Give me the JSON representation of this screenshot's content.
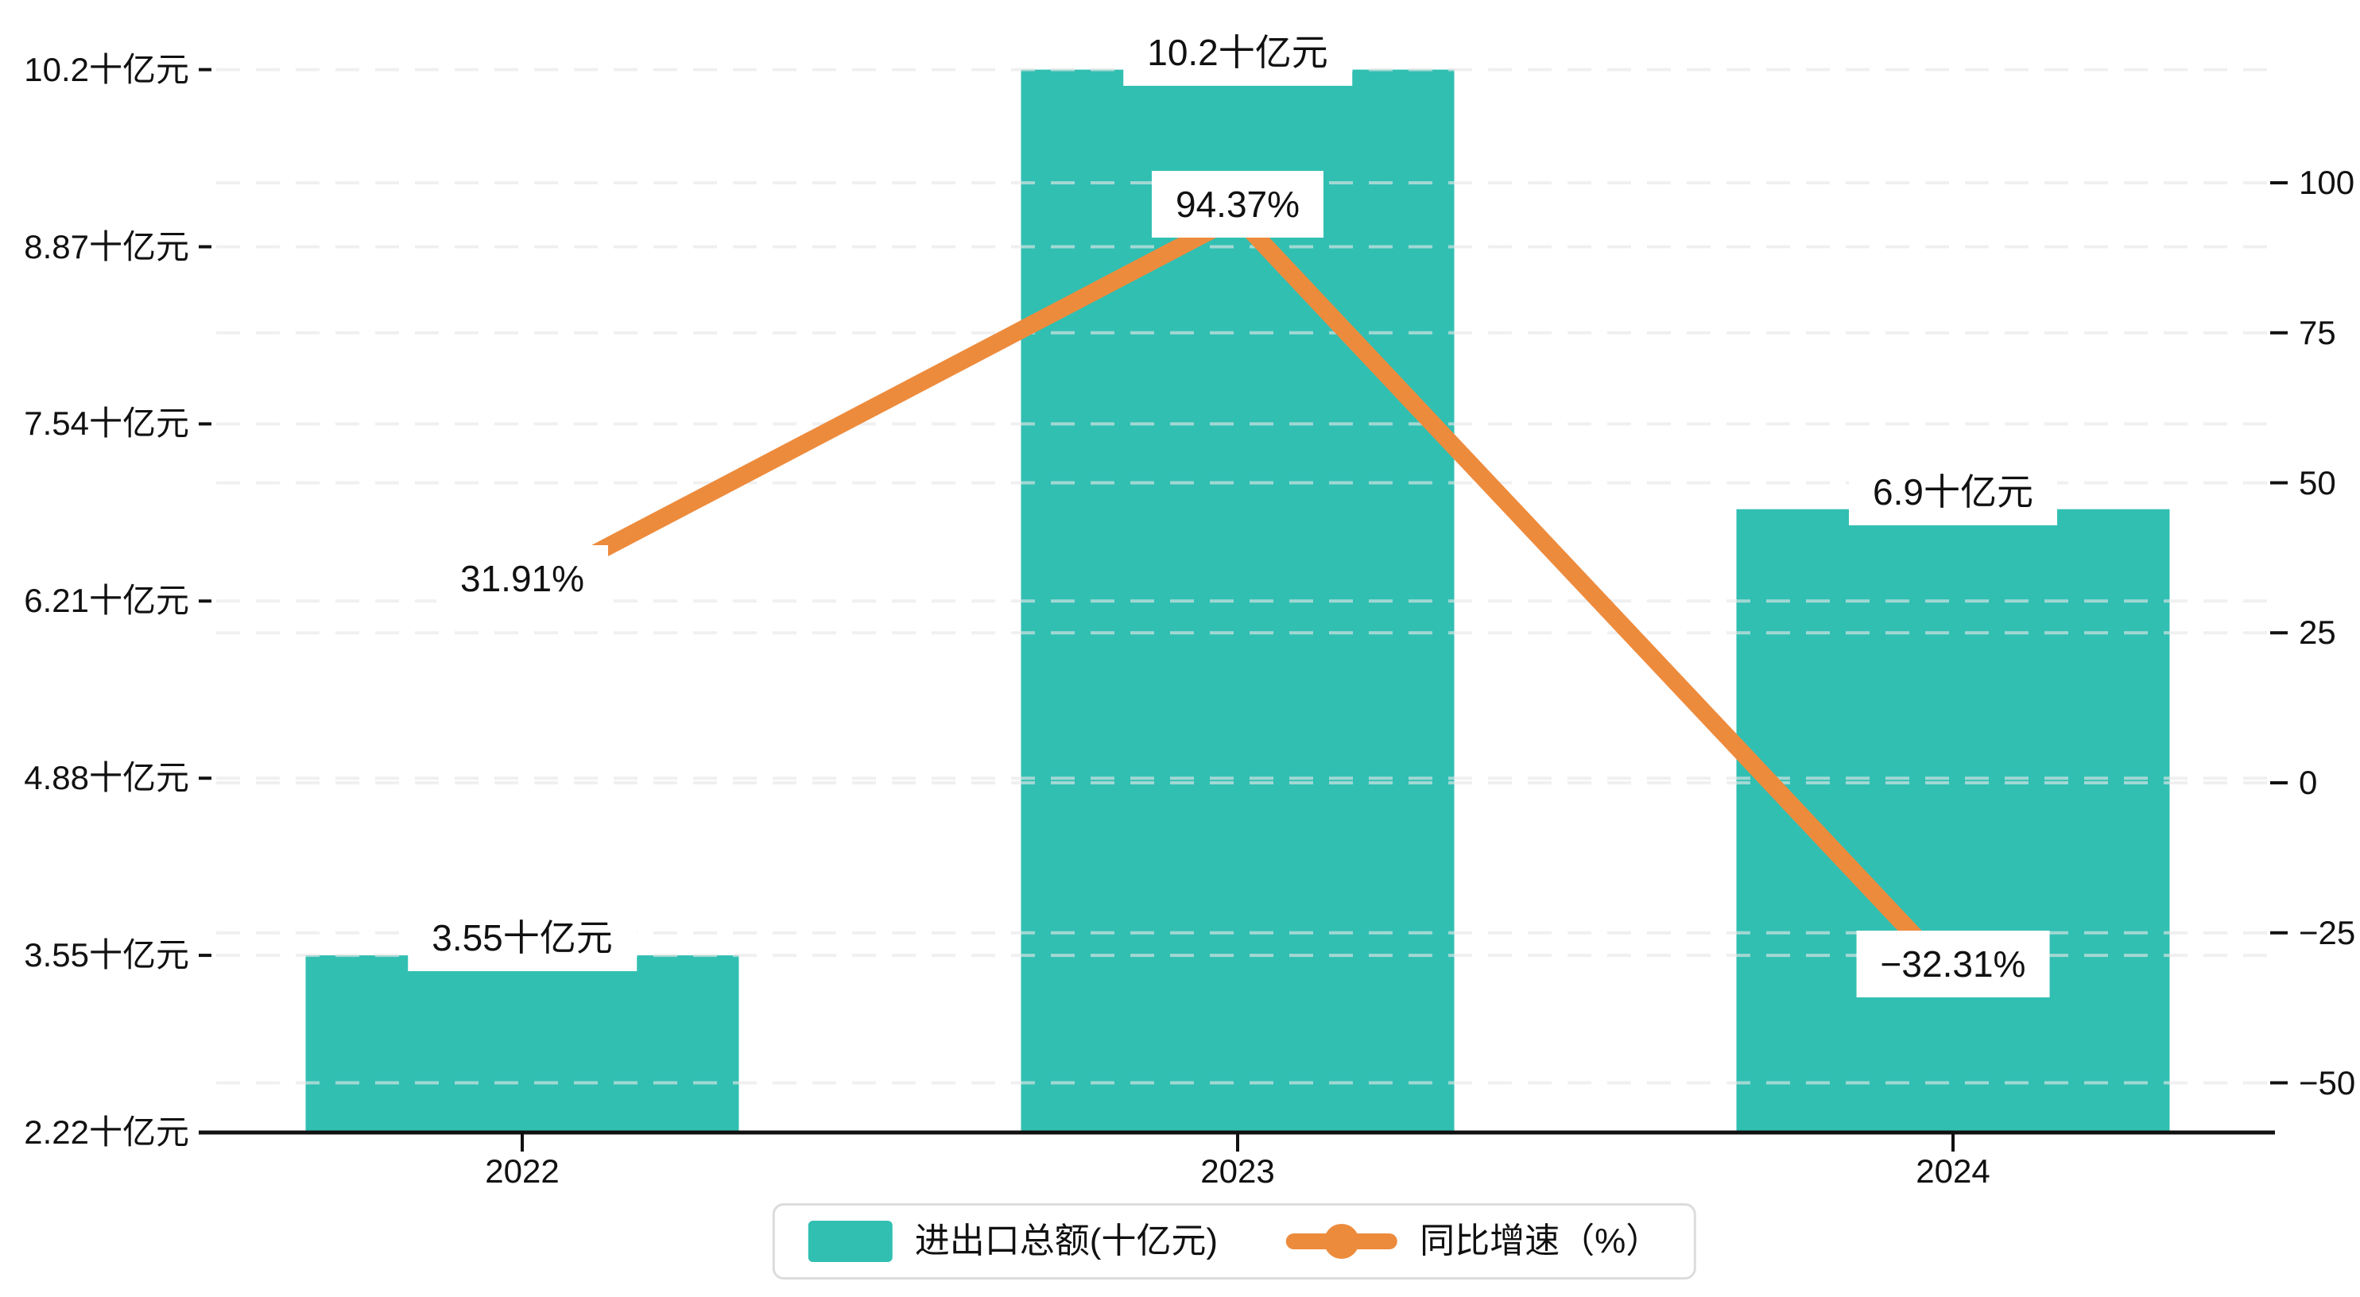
{
  "chart_data": {
    "type": "bar",
    "subtype": "bar-line-combo-dual-axis",
    "categories": [
      "2022",
      "2023",
      "2024"
    ],
    "series": [
      {
        "name": "进出口总额(十亿元)",
        "type": "bar",
        "axis": "left",
        "values": [
          3.55,
          10.2,
          6.9
        ],
        "labels": [
          "3.55十亿元",
          "10.2十亿元",
          "6.9十亿元"
        ],
        "color": "#31bfb2"
      },
      {
        "name": "同比增速（%）",
        "type": "line",
        "axis": "right",
        "values": [
          31.91,
          94.37,
          -32.31
        ],
        "labels": [
          "31.91%",
          "94.37%",
          "−32.31%"
        ],
        "color": "#ed8b3d"
      }
    ],
    "left_axis": {
      "position": "left",
      "tick_labels": [
        "10.2十亿元",
        "8.87十亿元",
        "7.54十亿元",
        "6.21十亿元",
        "4.88十亿元",
        "3.55十亿元",
        "2.22十亿元"
      ],
      "tick_values": [
        10.2,
        8.87,
        7.54,
        6.21,
        4.88,
        3.55,
        2.22
      ],
      "min": 2.22,
      "max": 10.2
    },
    "right_axis": {
      "position": "right",
      "tick_labels": [
        "100",
        "75",
        "50",
        "25",
        "0",
        "−25",
        "−50"
      ],
      "tick_values": [
        100,
        75,
        50,
        25,
        0,
        -25,
        -50
      ],
      "min": -50,
      "max": 100
    },
    "legend": {
      "position": "bottom-center",
      "items": [
        {
          "label": "进出口总额(十亿元)",
          "marker": "square",
          "color": "#31bfb2"
        },
        {
          "label": "同比增速（%）",
          "marker": "line-circle",
          "color": "#ed8b3d"
        }
      ]
    },
    "grid": "horizontal-dashed",
    "colors": {
      "bar": "#31bfb2",
      "line": "#ed8b3d",
      "axis": "#111111",
      "gridline": "#e6e6e6",
      "label_bg": "#ffffff",
      "label_text": "#111111",
      "legend_border": "#dcdcdc"
    }
  }
}
